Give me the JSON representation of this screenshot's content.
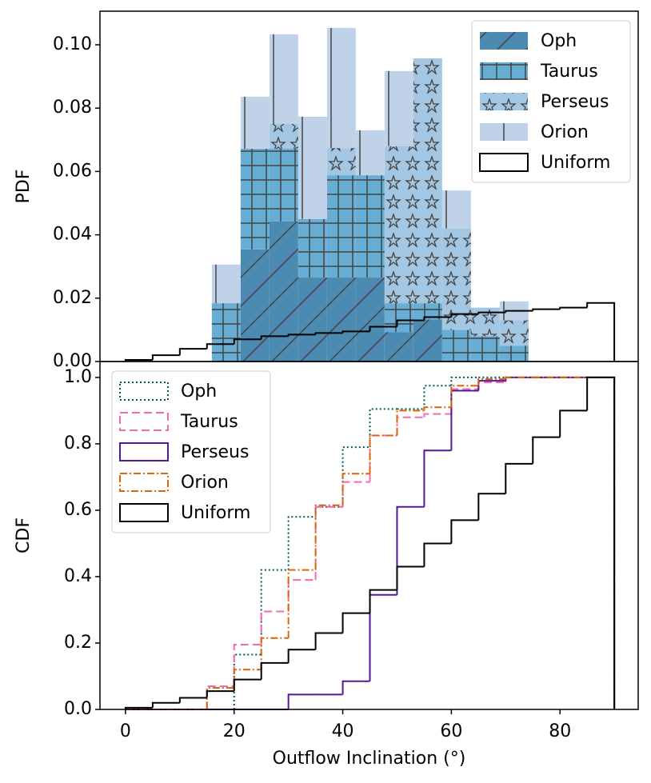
{
  "chart_data": [
    {
      "type": "stacked_histogram",
      "ylabel": "PDF",
      "xlim": [
        -4.7,
        94.4
      ],
      "ylim": [
        0,
        0.1106
      ],
      "yticks": [
        {
          "value": 0,
          "label": "0.00"
        },
        {
          "value": 0.02,
          "label": "0.02"
        },
        {
          "value": 0.04,
          "label": "0.04"
        },
        {
          "value": 0.06,
          "label": "0.06"
        },
        {
          "value": 0.08,
          "label": "0.08"
        },
        {
          "value": 0.1,
          "label": "0.10"
        }
      ],
      "legend": "upper right",
      "series": [
        {
          "name": "Oph",
          "color": "#4d8ab2",
          "hatch": "/",
          "bins": [
            15.9,
            21.2,
            26.5,
            31.8,
            37.1,
            42.4,
            47.7,
            53.0,
            58.3,
            63.6,
            68.9,
            74.2
          ],
          "values": [
            0,
            0.0354,
            0.0442,
            0.0265,
            0.0265,
            0.0265,
            0.0093,
            0.0133,
            0,
            0,
            0
          ]
        },
        {
          "name": "Taurus",
          "color": "#67add4",
          "hatch": "+",
          "bins": [
            15.9,
            21.2,
            26.5,
            31.8,
            37.1,
            42.4,
            47.7,
            53.0,
            58.3,
            63.6,
            68.9,
            74.2
          ],
          "values": [
            0.0184,
            0.0318,
            0.023,
            0.0185,
            0.0323,
            0.0323,
            0.0091,
            0.0051,
            0.01,
            0.008,
            0.005
          ]
        },
        {
          "name": "Perseus",
          "color": "#a3c6e2",
          "hatch": "*",
          "bins": [
            15.9,
            21.2,
            26.5,
            31.8,
            37.1,
            42.4,
            47.7,
            53.0,
            58.3,
            63.6,
            68.9,
            74.2
          ],
          "values": [
            0,
            0,
            0.0078,
            0,
            0.0086,
            0,
            0.0496,
            0.0773,
            0.032,
            0.009,
            0.008
          ]
        },
        {
          "name": "Orion",
          "color": "#c0d2e8",
          "hatch": "|",
          "bins": [
            15.9,
            21.2,
            26.5,
            31.8,
            37.1,
            42.4,
            47.7,
            53.0,
            58.3,
            63.6,
            68.9,
            74.2
          ],
          "values": [
            0.0122,
            0.0164,
            0.0283,
            0.0323,
            0.0379,
            0.0142,
            0.0237,
            0,
            0.012,
            0,
            0.006
          ]
        },
        {
          "name": "Uniform",
          "color": "#000000",
          "histtype": "step",
          "bins": [
            0,
            5,
            10,
            15,
            20,
            25,
            30,
            35,
            40,
            45,
            50,
            55,
            60,
            65,
            70,
            75,
            80,
            85,
            90
          ],
          "values": [
            0.0005,
            0.002,
            0.004,
            0.0055,
            0.007,
            0.008,
            0.0085,
            0.009,
            0.0095,
            0.011,
            0.013,
            0.014,
            0.015,
            0.0155,
            0.016,
            0.0165,
            0.017,
            0.0185
          ]
        }
      ]
    },
    {
      "type": "step_histogram",
      "ylabel": "CDF",
      "xlabel": "Outflow Inclination (°)",
      "xlim": [
        -4.7,
        94.4
      ],
      "ylim": [
        0,
        1.048
      ],
      "xticks": [
        0,
        20,
        40,
        60,
        80
      ],
      "yticks": [
        {
          "value": 0,
          "label": "0.0"
        },
        {
          "value": 0.2,
          "label": "0.2"
        },
        {
          "value": 0.4,
          "label": "0.4"
        },
        {
          "value": 0.6,
          "label": "0.6"
        },
        {
          "value": 0.8,
          "label": "0.8"
        },
        {
          "value": 1,
          "label": "1.0"
        }
      ],
      "legend": "upper left",
      "bins": [
        0,
        5,
        10,
        15,
        20,
        25,
        30,
        35,
        40,
        45,
        50,
        55,
        60,
        65,
        70,
        75,
        80,
        85,
        90
      ],
      "series": [
        {
          "name": "Oph",
          "color": "#00585e",
          "linestyle": "dotted",
          "values": [
            0,
            0,
            0,
            0,
            0.165,
            0.42,
            0.58,
            0.61,
            0.79,
            0.905,
            0.905,
            0.975,
            1,
            1,
            1,
            1,
            1,
            1
          ]
        },
        {
          "name": "Taurus",
          "color": "#f768b0",
          "linestyle": "dashed",
          "values": [
            0,
            0,
            0,
            0.07,
            0.195,
            0.295,
            0.39,
            0.61,
            0.685,
            0.825,
            0.88,
            0.89,
            0.965,
            0.985,
            1,
            1,
            1,
            1
          ]
        },
        {
          "name": "Perseus",
          "color": "#54169a",
          "linestyle": "solid",
          "values": [
            0,
            0,
            0,
            0,
            0,
            0,
            0.045,
            0.045,
            0.085,
            0.345,
            0.61,
            0.78,
            0.96,
            0.99,
            1,
            1,
            1,
            1
          ]
        },
        {
          "name": "Orion",
          "color": "#d9650c",
          "linestyle": "dashdot",
          "values": [
            0,
            0,
            0,
            0.065,
            0.12,
            0.215,
            0.42,
            0.615,
            0.71,
            0.825,
            0.9,
            0.91,
            0.975,
            0.995,
            1,
            1,
            1,
            1
          ]
        },
        {
          "name": "Uniform",
          "color": "#000000",
          "linestyle": "solid",
          "values": [
            0.005,
            0.02,
            0.035,
            0.055,
            0.09,
            0.14,
            0.18,
            0.23,
            0.29,
            0.36,
            0.43,
            0.5,
            0.57,
            0.65,
            0.74,
            0.82,
            0.9,
            1
          ]
        }
      ]
    }
  ]
}
